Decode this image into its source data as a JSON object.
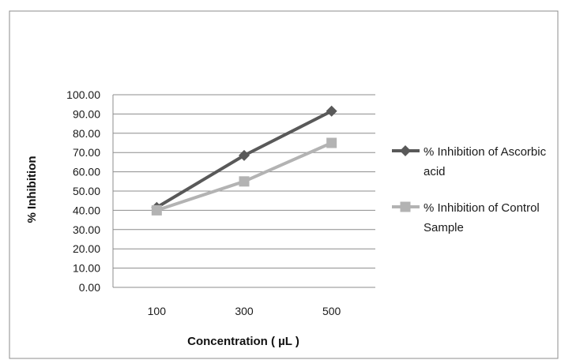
{
  "chart_data": {
    "type": "line",
    "title": "",
    "xlabel": "Concentration ( µL )",
    "ylabel": "% Inhibition",
    "categories": [
      "100",
      "300",
      "500"
    ],
    "yticks": [
      "0.00",
      "10.00",
      "20.00",
      "30.00",
      "40.00",
      "50.00",
      "60.00",
      "70.00",
      "80.00",
      "90.00",
      "100.00"
    ],
    "ylim": [
      0,
      100
    ],
    "grid": true,
    "legend_position": "right",
    "series": [
      {
        "name": "% Inhibition of Ascorbic acid",
        "name_lines": [
          "% Inhibition of Ascorbic",
          "acid"
        ],
        "values": [
          41.5,
          68.5,
          91.5
        ],
        "color": "#595959",
        "marker": "diamond"
      },
      {
        "name": "% Inhibition of Control Sample",
        "name_lines": [
          "% Inhibition of Control",
          "Sample"
        ],
        "values": [
          40.0,
          55.0,
          75.0
        ],
        "color": "#b3b3b3",
        "marker": "square"
      }
    ]
  }
}
